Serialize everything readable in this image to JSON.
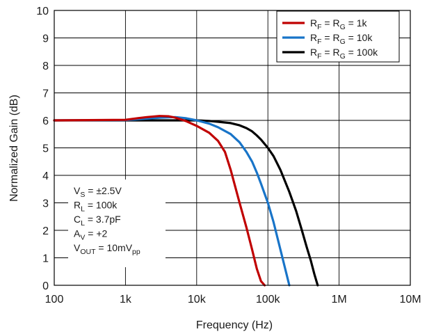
{
  "chart_data": {
    "type": "line",
    "xlabel": "Frequency (Hz)",
    "ylabel": "Normalized Gain (dB)",
    "x_scale": "log",
    "xlim": [
      100,
      10000000
    ],
    "ylim": [
      0,
      10
    ],
    "grid": true,
    "x_ticks": [
      {
        "value": 100,
        "label": "100"
      },
      {
        "value": 1000,
        "label": "1k"
      },
      {
        "value": 10000,
        "label": "10k"
      },
      {
        "value": 100000,
        "label": "100k"
      },
      {
        "value": 1000000,
        "label": "1M"
      },
      {
        "value": 10000000,
        "label": "10M"
      }
    ],
    "y_ticks": [
      {
        "value": 0,
        "label": "0"
      },
      {
        "value": 1,
        "label": "1"
      },
      {
        "value": 2,
        "label": "2"
      },
      {
        "value": 3,
        "label": "3"
      },
      {
        "value": 4,
        "label": "4"
      },
      {
        "value": 5,
        "label": "5"
      },
      {
        "value": 6,
        "label": "6"
      },
      {
        "value": 7,
        "label": "7"
      },
      {
        "value": 8,
        "label": "8"
      },
      {
        "value": 9,
        "label": "9"
      },
      {
        "value": 10,
        "label": "10"
      }
    ],
    "legend_position": "top-right",
    "series": [
      {
        "name": "R_F = R_G = 1k",
        "label_parts": [
          [
            "R",
            ""
          ],
          [
            "F",
            "sub"
          ],
          [
            " = R",
            ""
          ],
          [
            "G",
            "sub"
          ],
          [
            " = 1k",
            ""
          ]
        ],
        "color": "#c00000",
        "x": [
          100,
          1000,
          1500,
          2000,
          3000,
          4000,
          5000,
          7000,
          10000,
          15000,
          20000,
          25000,
          30000,
          40000,
          50000,
          60000,
          70000,
          80000,
          90000
        ],
        "y": [
          6.0,
          6.02,
          6.08,
          6.12,
          6.16,
          6.15,
          6.1,
          5.98,
          5.8,
          5.55,
          5.25,
          4.85,
          4.2,
          3.0,
          2.1,
          1.3,
          0.6,
          0.15,
          0.0
        ]
      },
      {
        "name": "R_F = R_G = 10k",
        "label_parts": [
          [
            "R",
            ""
          ],
          [
            "F",
            "sub"
          ],
          [
            " = R",
            ""
          ],
          [
            "G",
            "sub"
          ],
          [
            " = 10k",
            ""
          ]
        ],
        "color": "#1874c8",
        "x": [
          100,
          1000,
          3000,
          5000,
          7000,
          10000,
          15000,
          20000,
          30000,
          40000,
          50000,
          60000,
          70000,
          80000,
          100000,
          120000,
          150000,
          200000
        ],
        "y": [
          6.0,
          6.01,
          6.1,
          6.12,
          6.08,
          6.0,
          5.88,
          5.75,
          5.5,
          5.2,
          4.85,
          4.5,
          4.1,
          3.7,
          3.0,
          2.3,
          1.3,
          0.0
        ]
      },
      {
        "name": "R_F = R_G = 100k",
        "label_parts": [
          [
            "R",
            ""
          ],
          [
            "F",
            "sub"
          ],
          [
            " = R",
            ""
          ],
          [
            "G",
            "sub"
          ],
          [
            " = 100k",
            ""
          ]
        ],
        "color": "#000000",
        "x": [
          100,
          1000,
          5000,
          10000,
          15000,
          20000,
          30000,
          40000,
          50000,
          60000,
          70000,
          80000,
          100000,
          120000,
          150000,
          200000,
          250000,
          300000,
          350000,
          400000,
          450000,
          500000
        ],
        "y": [
          6.0,
          6.0,
          6.0,
          6.0,
          5.98,
          5.95,
          5.9,
          5.82,
          5.72,
          5.6,
          5.45,
          5.3,
          5.0,
          4.7,
          4.2,
          3.4,
          2.7,
          2.0,
          1.4,
          0.9,
          0.4,
          0.0
        ]
      }
    ],
    "annotations": [
      [
        [
          "V",
          ""
        ],
        [
          "S",
          "sub"
        ],
        [
          " = ±2.5V",
          ""
        ]
      ],
      [
        [
          "R",
          ""
        ],
        [
          "L",
          "sub"
        ],
        [
          " = 100k",
          ""
        ]
      ],
      [
        [
          "C",
          ""
        ],
        [
          "L",
          "sub"
        ],
        [
          " = 3.7pF",
          ""
        ]
      ],
      [
        [
          "A",
          ""
        ],
        [
          "V",
          "sub"
        ],
        [
          " = +2",
          ""
        ]
      ],
      [
        [
          "V",
          ""
        ],
        [
          "OUT",
          "sub"
        ],
        [
          " = 10mV",
          ""
        ],
        [
          "pp",
          "sub"
        ]
      ]
    ]
  }
}
